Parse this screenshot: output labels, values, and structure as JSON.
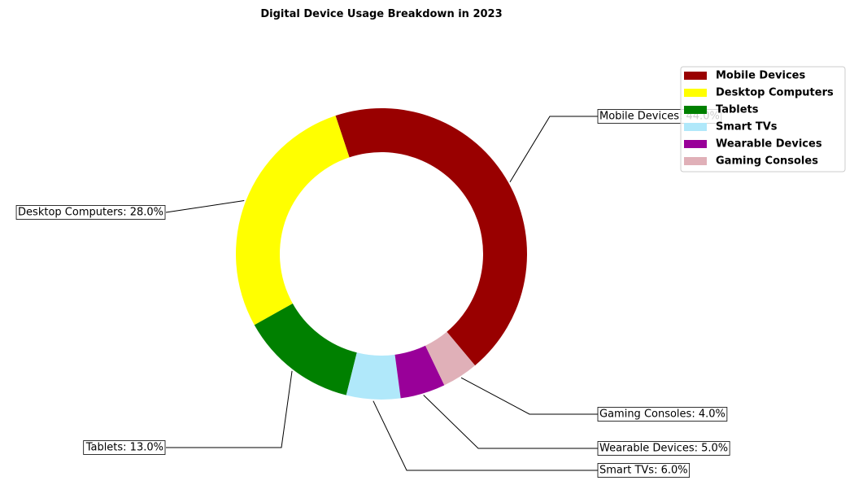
{
  "chart_data": {
    "type": "pie",
    "variant": "donut",
    "title": "Digital Device Usage Breakdown in 2023",
    "slices": [
      {
        "label": "Mobile Devices",
        "value": 44.0,
        "color": "#990000",
        "callout": "Mobile Devices: 44.0%"
      },
      {
        "label": "Desktop Computers",
        "value": 28.0,
        "color": "#ffff00",
        "callout": "Desktop Computers: 28.0%"
      },
      {
        "label": "Tablets",
        "value": 13.0,
        "color": "#008000",
        "callout": "Tablets: 13.0%"
      },
      {
        "label": "Smart TVs",
        "value": 6.0,
        "color": "#b0e8fa",
        "callout": "Smart TVs: 6.0%"
      },
      {
        "label": "Wearable Devices",
        "value": 5.0,
        "color": "#990099",
        "callout": "Wearable Devices: 5.0%"
      },
      {
        "label": "Gaming Consoles",
        "value": 4.0,
        "color": "#e0b0b8",
        "callout": "Gaming Consoles: 4.0%"
      }
    ],
    "legend": {
      "position": "top-right",
      "entries": [
        "Mobile Devices",
        "Desktop Computers",
        "Tablets",
        "Smart TVs",
        "Wearable Devices",
        "Gaming Consoles"
      ]
    }
  }
}
